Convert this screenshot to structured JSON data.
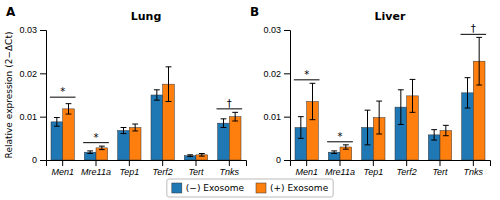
{
  "chart_data": [
    {
      "type": "bar",
      "title": "Lung",
      "panel_label": "A",
      "ylabel": "Relative expression (2−ΔCt)",
      "categories": [
        "Men1",
        "Mre11a",
        "Tep1",
        "Terf2",
        "Tert",
        "Tnks"
      ],
      "series": [
        {
          "name": "(−) Exosome",
          "values": [
            0.0088,
            0.0018,
            0.0068,
            0.015,
            0.001,
            0.0085
          ],
          "errors": [
            0.001,
            0.0003,
            0.0007,
            0.0012,
            0.0002,
            0.001
          ]
        },
        {
          "name": "(+) Exosome",
          "values": [
            0.0118,
            0.0028,
            0.0075,
            0.0175,
            0.0012,
            0.01
          ],
          "errors": [
            0.0012,
            0.0004,
            0.0008,
            0.004,
            0.0003,
            0.001
          ]
        }
      ],
      "annotations": [
        {
          "category": "Men1",
          "text": "*",
          "y": 0.0145
        },
        {
          "category": "Mre11a",
          "text": "*",
          "y": 0.004
        },
        {
          "category": "Tnks",
          "text": "†",
          "y": 0.0118
        }
      ],
      "ylim": [
        0,
        0.03
      ],
      "yticks": [
        0,
        0.01,
        0.02,
        0.03
      ],
      "grid": false,
      "legend": "bottom"
    },
    {
      "type": "bar",
      "title": "Liver",
      "panel_label": "B",
      "categories": [
        "Men1",
        "Mre11a",
        "Tep1",
        "Terf2",
        "Tert",
        "Tnks"
      ],
      "series": [
        {
          "name": "(−) Exosome",
          "values": [
            0.0075,
            0.0018,
            0.0075,
            0.0122,
            0.0058,
            0.0155
          ],
          "errors": [
            0.0025,
            0.0003,
            0.004,
            0.004,
            0.0012,
            0.0035
          ]
        },
        {
          "name": "(+) Exosome",
          "values": [
            0.0135,
            0.003,
            0.0098,
            0.0148,
            0.0068,
            0.0228
          ],
          "errors": [
            0.0042,
            0.0005,
            0.0038,
            0.0038,
            0.0012,
            0.0055
          ]
        }
      ],
      "annotations": [
        {
          "category": "Men1",
          "text": "*",
          "y": 0.0185
        },
        {
          "category": "Mre11a",
          "text": "*",
          "y": 0.0042
        },
        {
          "category": "Tnks",
          "text": "†",
          "y": 0.029
        }
      ],
      "ylim": [
        0,
        0.03
      ],
      "yticks": [
        0,
        0.01,
        0.02,
        0.03
      ],
      "grid": false
    }
  ]
}
